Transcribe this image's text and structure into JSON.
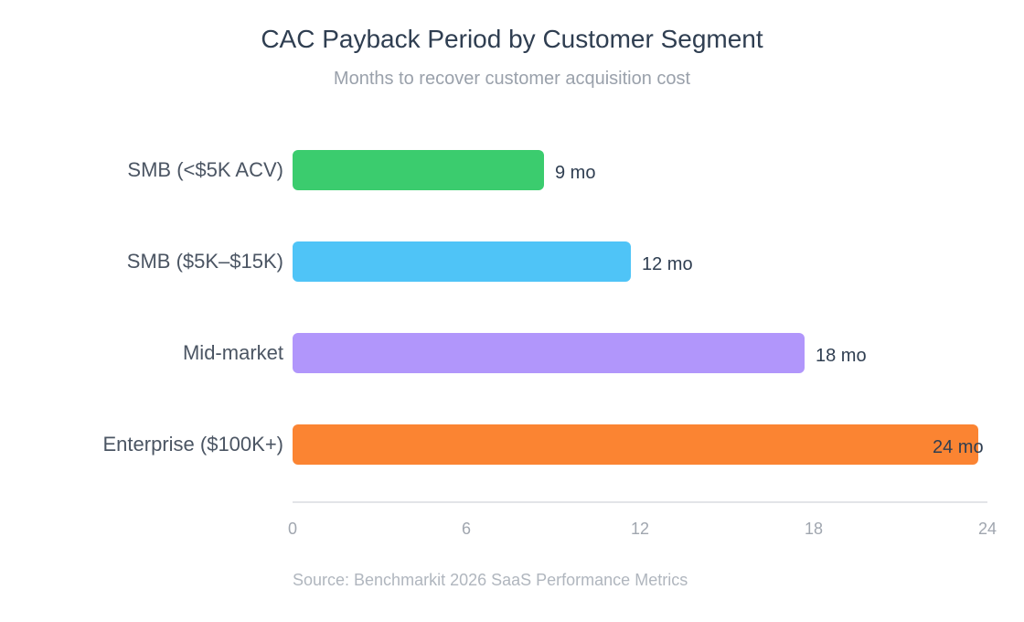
{
  "chart_data": {
    "type": "bar",
    "orientation": "horizontal",
    "title": "CAC Payback Period by Customer Segment",
    "subtitle": "Months to recover customer acquisition cost",
    "categories": [
      "SMB (<$5K ACV)",
      "SMB ($5K–$15K)",
      "Mid-market",
      "Enterprise ($100K+)"
    ],
    "values": [
      9,
      12,
      18,
      24
    ],
    "value_labels": [
      "9 mo",
      "12 mo",
      "18 mo",
      "24 mo"
    ],
    "colors": [
      "#3bcc6e",
      "#4fc4f7",
      "#b196fb",
      "#fb8432"
    ],
    "xlim": [
      0,
      24
    ],
    "xticks": [
      0,
      6,
      12,
      18,
      24
    ],
    "grid": false,
    "legend": "none",
    "source": "Source: Benchmarkit 2026 SaaS Performance Metrics"
  }
}
